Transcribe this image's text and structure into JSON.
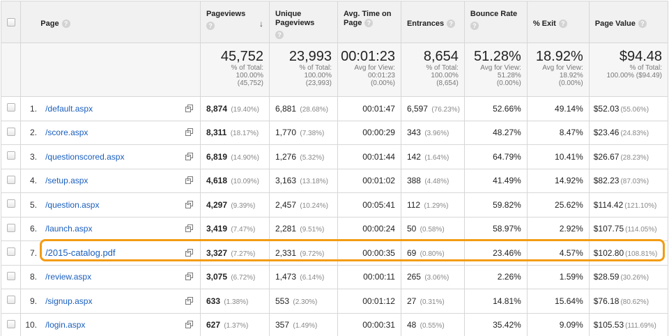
{
  "columns": {
    "page": "Page",
    "pageviews": "Pageviews",
    "unique_pageviews": "Unique Pageviews",
    "avg_time": "Avg. Time on Page",
    "entrances": "Entrances",
    "bounce_rate": "Bounce Rate",
    "exit": "% Exit",
    "page_value": "Page Value"
  },
  "totals": {
    "pageviews": {
      "value": "45,752",
      "l1": "% of Total:",
      "l2": "100.00%",
      "l3": "(45,752)"
    },
    "unique_pageviews": {
      "value": "23,993",
      "l1": "% of Total:",
      "l2": "100.00%",
      "l3": "(23,993)"
    },
    "avg_time": {
      "value": "00:01:23",
      "l1": "Avg for View:",
      "l2": "00:01:23",
      "l3": "(0.00%)"
    },
    "entrances": {
      "value": "8,654",
      "l1": "% of Total:",
      "l2": "100.00%",
      "l3": "(8,654)"
    },
    "bounce_rate": {
      "value": "51.28%",
      "l1": "Avg for View:",
      "l2": "51.28%",
      "l3": "(0.00%)"
    },
    "exit": {
      "value": "18.92%",
      "l1": "Avg for View:",
      "l2": "18.92%",
      "l3": "(0.00%)"
    },
    "page_value": {
      "value": "$94.48",
      "l1": "% of Total:",
      "l2": "100.00% ($94.49)",
      "l3": ""
    }
  },
  "rows": [
    {
      "idx": "1.",
      "page": "/default.aspx",
      "pv": "8,874",
      "pv_pct": "(19.40%)",
      "upv": "6,881",
      "upv_pct": "(28.68%)",
      "time": "00:01:47",
      "ent": "6,597",
      "ent_pct": "(76.23%)",
      "bounce": "52.66%",
      "exit": "49.14%",
      "val": "$52.03",
      "val_pct": "(55.06%)"
    },
    {
      "idx": "2.",
      "page": "/score.aspx",
      "pv": "8,311",
      "pv_pct": "(18.17%)",
      "upv": "1,770",
      "upv_pct": "(7.38%)",
      "time": "00:00:29",
      "ent": "343",
      "ent_pct": "(3.96%)",
      "bounce": "48.27%",
      "exit": "8.47%",
      "val": "$23.46",
      "val_pct": "(24.83%)"
    },
    {
      "idx": "3.",
      "page": "/questionscored.aspx",
      "pv": "6,819",
      "pv_pct": "(14.90%)",
      "upv": "1,276",
      "upv_pct": "(5.32%)",
      "time": "00:01:44",
      "ent": "142",
      "ent_pct": "(1.64%)",
      "bounce": "64.79%",
      "exit": "10.41%",
      "val": "$26.67",
      "val_pct": "(28.23%)"
    },
    {
      "idx": "4.",
      "page": "/setup.aspx",
      "pv": "4,618",
      "pv_pct": "(10.09%)",
      "upv": "3,163",
      "upv_pct": "(13.18%)",
      "time": "00:01:02",
      "ent": "388",
      "ent_pct": "(4.48%)",
      "bounce": "41.49%",
      "exit": "14.92%",
      "val": "$82.23",
      "val_pct": "(87.03%)"
    },
    {
      "idx": "5.",
      "page": "/question.aspx",
      "pv": "4,297",
      "pv_pct": "(9.39%)",
      "upv": "2,457",
      "upv_pct": "(10.24%)",
      "time": "00:05:41",
      "ent": "112",
      "ent_pct": "(1.29%)",
      "bounce": "59.82%",
      "exit": "25.62%",
      "val": "$114.42",
      "val_pct": "(121.10%)"
    },
    {
      "idx": "6.",
      "page": "/launch.aspx",
      "pv": "3,419",
      "pv_pct": "(7.47%)",
      "upv": "2,281",
      "upv_pct": "(9.51%)",
      "time": "00:00:24",
      "ent": "50",
      "ent_pct": "(0.58%)",
      "bounce": "58.97%",
      "exit": "2.92%",
      "val": "$107.75",
      "val_pct": "(114.05%)"
    },
    {
      "idx": "7.",
      "page": "/2015-catalog.pdf",
      "pv": "3,327",
      "pv_pct": "(7.27%)",
      "upv": "2,331",
      "upv_pct": "(9.72%)",
      "time": "00:00:35",
      "ent": "69",
      "ent_pct": "(0.80%)",
      "bounce": "23.46%",
      "exit": "4.57%",
      "val": "$102.80",
      "val_pct": "(108.81%)"
    },
    {
      "idx": "8.",
      "page": "/review.aspx",
      "pv": "3,075",
      "pv_pct": "(6.72%)",
      "upv": "1,473",
      "upv_pct": "(6.14%)",
      "time": "00:00:11",
      "ent": "265",
      "ent_pct": "(3.06%)",
      "bounce": "2.26%",
      "exit": "1.59%",
      "val": "$28.59",
      "val_pct": "(30.26%)"
    },
    {
      "idx": "9.",
      "page": "/signup.aspx",
      "pv": "633",
      "pv_pct": "(1.38%)",
      "upv": "553",
      "upv_pct": "(2.30%)",
      "time": "00:01:12",
      "ent": "27",
      "ent_pct": "(0.31%)",
      "bounce": "14.81%",
      "exit": "15.64%",
      "val": "$76.18",
      "val_pct": "(80.62%)"
    },
    {
      "idx": "10.",
      "page": "/login.aspx",
      "pv": "627",
      "pv_pct": "(1.37%)",
      "upv": "357",
      "upv_pct": "(1.49%)",
      "time": "00:00:31",
      "ent": "48",
      "ent_pct": "(0.55%)",
      "bounce": "35.42%",
      "exit": "9.09%",
      "val": "$105.53",
      "val_pct": "(111.69%)"
    }
  ],
  "highlighted_row": 6,
  "colors": {
    "highlight": "#f39c12",
    "link": "#1a5ebd",
    "header_bg": "#f1f1f1"
  }
}
